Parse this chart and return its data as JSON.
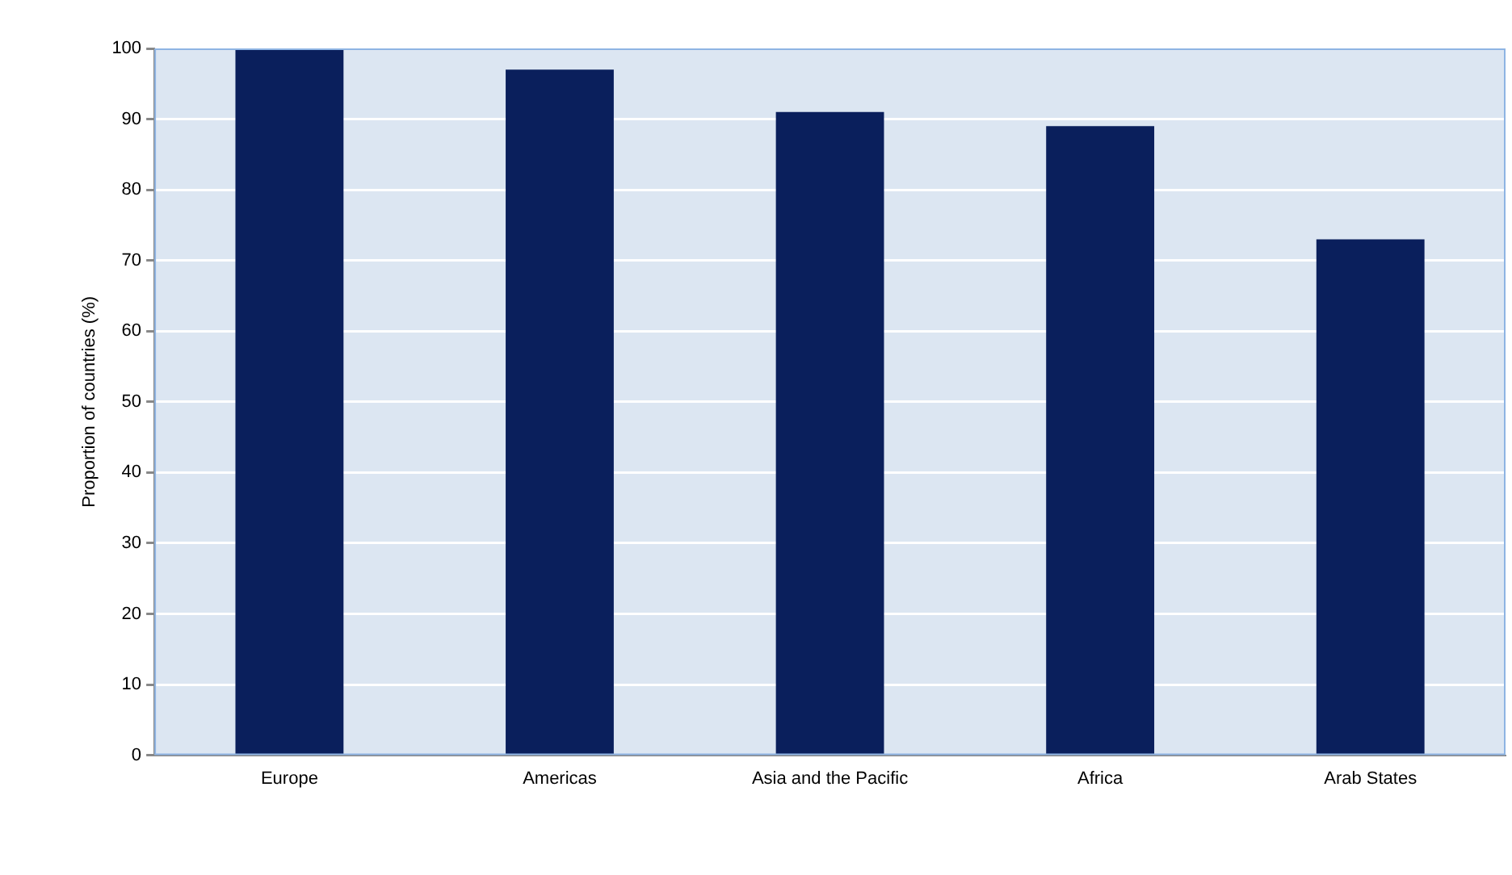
{
  "chart_data": {
    "type": "bar",
    "ylabel": "Proportion of countries (%)",
    "categories": [
      "Europe",
      "Americas",
      "Asia and the Pacific",
      "Africa",
      "Arab States"
    ],
    "values": [
      100,
      97,
      91,
      89,
      73
    ],
    "color": "#0a1f5c",
    "ylim": [
      0,
      100
    ],
    "yticks": [
      0,
      10,
      20,
      30,
      40,
      50,
      60,
      70,
      80,
      90,
      100
    ],
    "grid": "y"
  }
}
